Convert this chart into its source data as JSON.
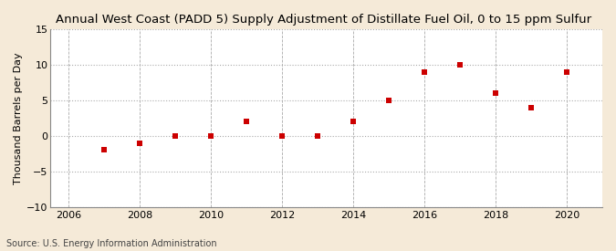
{
  "title": "Annual West Coast (PADD 5) Supply Adjustment of Distillate Fuel Oil, 0 to 15 ppm Sulfur",
  "ylabel": "Thousand Barrels per Day",
  "source": "Source: U.S. Energy Information Administration",
  "years": [
    2007,
    2008,
    2009,
    2010,
    2011,
    2012,
    2013,
    2014,
    2015,
    2016,
    2017,
    2018,
    2019,
    2020
  ],
  "values": [
    -2,
    -1,
    0,
    0,
    2,
    0,
    0,
    2,
    5,
    9,
    10,
    6,
    4,
    9
  ],
  "marker_color": "#cc0000",
  "marker": "s",
  "marker_size": 4,
  "xlim": [
    2005.5,
    2021
  ],
  "ylim": [
    -10,
    15
  ],
  "yticks": [
    -10,
    -5,
    0,
    5,
    10,
    15
  ],
  "xticks": [
    2006,
    2008,
    2010,
    2012,
    2014,
    2016,
    2018,
    2020
  ],
  "figure_bg": "#f5ead8",
  "plot_bg": "#ffffff",
  "grid_color": "#aaaaaa",
  "title_fontsize": 9.5,
  "label_fontsize": 8,
  "tick_fontsize": 8,
  "source_fontsize": 7
}
